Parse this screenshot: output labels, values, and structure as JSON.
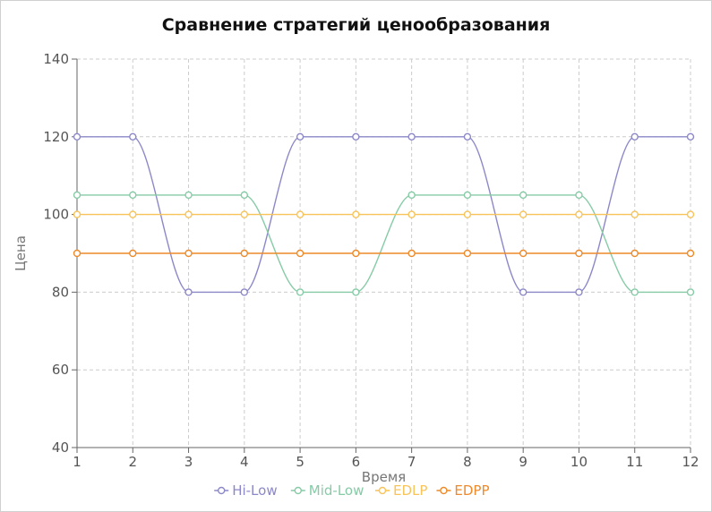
{
  "chart_data": {
    "type": "line",
    "title": "Сравнение стратегий ценообразования",
    "xlabel": "Время",
    "ylabel": "Цена",
    "x": [
      1,
      2,
      3,
      4,
      5,
      6,
      7,
      8,
      9,
      10,
      11,
      12
    ],
    "xlim": [
      1,
      12
    ],
    "ylim": [
      40,
      140
    ],
    "yticks": [
      40,
      60,
      80,
      100,
      120,
      140
    ],
    "grid": true,
    "legend_position": "bottom",
    "series": [
      {
        "name": "Hi-Low",
        "color": "#8c88c8",
        "values": [
          120,
          120,
          80,
          80,
          120,
          120,
          120,
          120,
          80,
          80,
          120,
          120
        ]
      },
      {
        "name": "Mid-Low",
        "color": "#86cba6",
        "values": [
          105,
          105,
          105,
          105,
          80,
          80,
          105,
          105,
          105,
          105,
          80,
          80
        ]
      },
      {
        "name": "EDLP",
        "color": "#f8c45a",
        "values": [
          100,
          100,
          100,
          100,
          100,
          100,
          100,
          100,
          100,
          100,
          100,
          100
        ]
      },
      {
        "name": "EDPP",
        "color": "#ee8a2a",
        "values": [
          90,
          90,
          90,
          90,
          90,
          90,
          90,
          90,
          90,
          90,
          90,
          90
        ]
      }
    ]
  }
}
